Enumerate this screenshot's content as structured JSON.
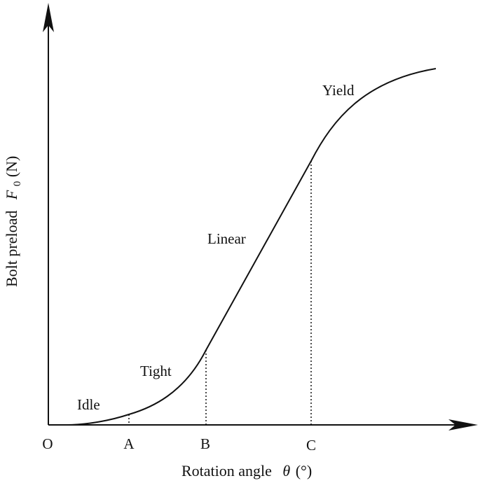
{
  "axes": {
    "y_label_prefix": "Bolt preload",
    "y_label_symbol": "F",
    "y_label_subscript": "0",
    "y_label_unit": "(N)",
    "x_label_prefix": "Rotation angle",
    "x_label_symbol": "θ",
    "x_label_unit": "(°)"
  },
  "points": {
    "origin": "O",
    "a": "A",
    "b": "B",
    "c": "C"
  },
  "regions": {
    "idle": "Idle",
    "tight": "Tight",
    "linear": "Linear",
    "yield": "Yield"
  },
  "colors": {
    "line": "#111111",
    "background": "#ffffff"
  }
}
